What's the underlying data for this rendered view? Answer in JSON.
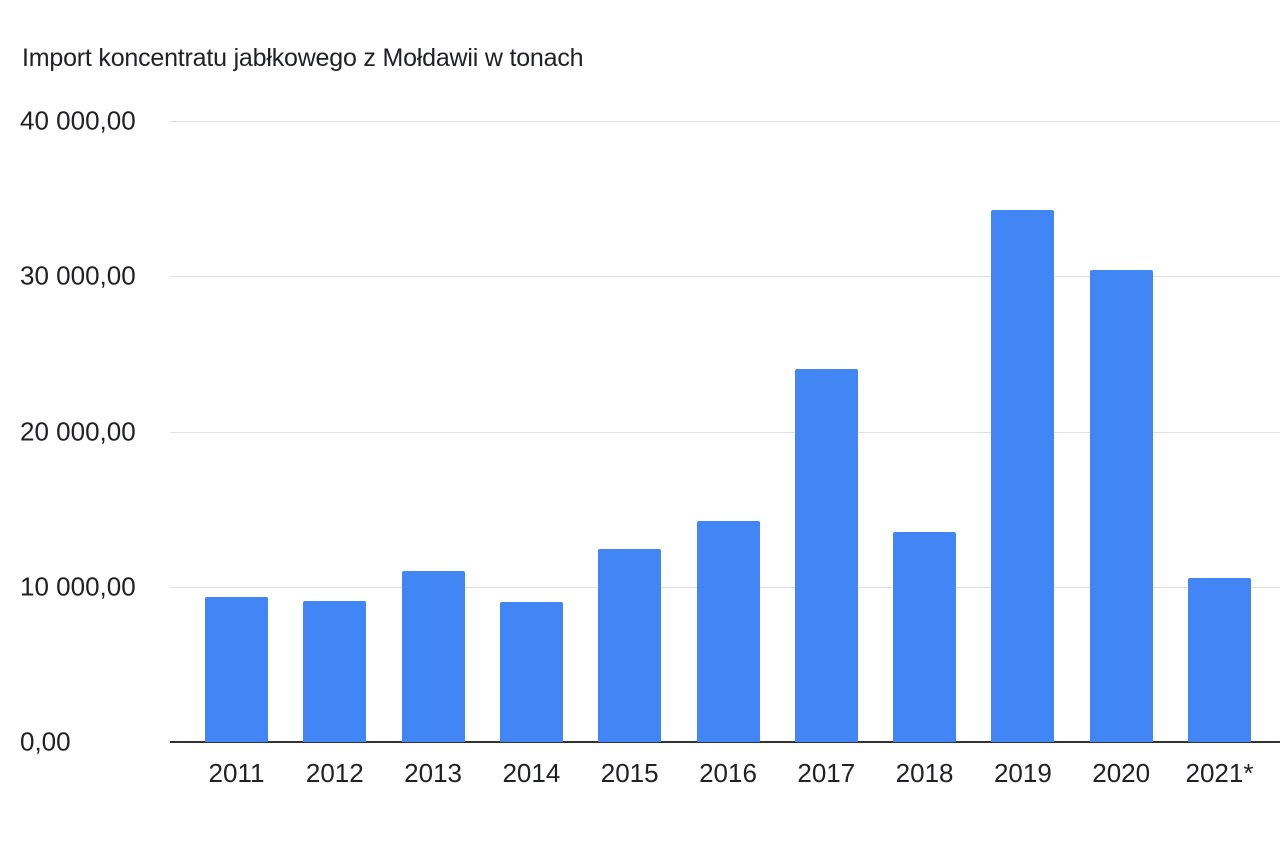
{
  "chart_data": {
    "type": "bar",
    "title": "Import koncentratu jabłkowego z Mołdawii w tonach",
    "xlabel": "",
    "ylabel": "",
    "categories": [
      "2011",
      "2012",
      "2013",
      "2014",
      "2015",
      "2016",
      "2017",
      "2018",
      "2019",
      "2020",
      "2021*"
    ],
    "values": [
      9350,
      9100,
      11000,
      9000,
      12450,
      14250,
      24050,
      13550,
      34250,
      30400,
      10550
    ],
    "ylim": [
      0,
      40000
    ],
    "yticks": [
      0,
      10000,
      20000,
      30000,
      40000
    ],
    "ytick_labels": [
      "0,00",
      "10 000,00",
      "20 000,00",
      "30 000,00",
      "40 000,00"
    ],
    "grid": true,
    "legend": null,
    "bar_color": "#4285f4"
  }
}
